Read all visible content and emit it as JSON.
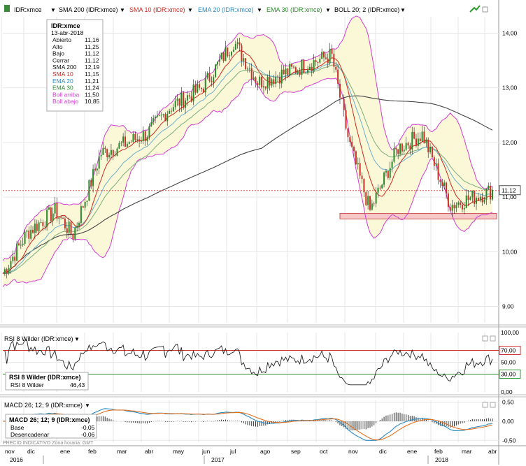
{
  "header": {
    "ticker": "IDR:xmce",
    "indicators": [
      {
        "label": "SMA 200 (IDR:xmce)",
        "color": "#000000"
      },
      {
        "label": "SMA 10 (IDR:xmce)",
        "color": "#d0281e"
      },
      {
        "label": "EMA 20 (IDR:xmce)",
        "color": "#2a8ac0"
      },
      {
        "label": "EMA 30 (IDR:xmce)",
        "color": "#2a8a2a"
      },
      {
        "label": "BOLL 20; 2 (IDR:xmce)",
        "color": "#000000"
      }
    ]
  },
  "info_box": {
    "title": "IDR:xmce",
    "date": "13-abr-2018",
    "rows": [
      {
        "label": "Abierto",
        "value": "11,16",
        "color": "#111111"
      },
      {
        "label": "Alto",
        "value": "11,25",
        "color": "#111111"
      },
      {
        "label": "Bajo",
        "value": "11,12",
        "color": "#111111"
      },
      {
        "label": "Cerrar",
        "value": "11,12",
        "color": "#111111"
      },
      {
        "label": "SMA 200",
        "value": "12,19",
        "color": "#111111"
      },
      {
        "label": "SMA 10",
        "value": "11,15",
        "color": "#d0281e"
      },
      {
        "label": "EMA 20",
        "value": "11,21",
        "color": "#2a8ac0"
      },
      {
        "label": "EMA 30",
        "value": "11,24",
        "color": "#2a8a2a"
      },
      {
        "label": "Boll arriba",
        "value": "11,50",
        "color": "#d23cd2"
      },
      {
        "label": "Boll abajo",
        "value": "10,85",
        "color": "#d23cd2"
      }
    ]
  },
  "price_panel": {
    "y_ticks": [
      "14,00",
      "13,00",
      "12,00",
      "11,00",
      "10,00",
      "9,00"
    ],
    "last_price_label": "11,12"
  },
  "rsi_panel": {
    "title": "RSI 8 Wilder (IDR:xmce)",
    "box_title": "RSI 8 Wilder (IDR:xmce)",
    "box_label": "RSI 8 Wilder",
    "box_value": "46,43",
    "y_ticks": [
      "100,00",
      "70,00",
      "50,00",
      "30,00",
      "0,00"
    ]
  },
  "macd_panel": {
    "title": "MACD 26; 12; 9 (IDR:xmce)",
    "box_title": "MACD 26; 12; 9 (IDR:xmce)",
    "rows": [
      {
        "label": "Base",
        "value": "-0,05",
        "color": "#2a8ac0"
      },
      {
        "label": "Desencadenar",
        "value": "-0,06",
        "color": "#e07020"
      }
    ],
    "y_ticks": [
      "0,50",
      "0,00",
      "-0,50"
    ],
    "footer": "PRECIO INDICATIVO  Zona horaria: GMT"
  },
  "x_axis": {
    "months": [
      "nov",
      "dic",
      "ene",
      "feb",
      "mar",
      "abr",
      "may",
      "jun",
      "jul",
      "ago",
      "sep",
      "oct",
      "nov",
      "dic",
      "ene",
      "feb",
      "mar",
      "abr"
    ],
    "years": [
      "2016",
      "2017",
      "2018"
    ]
  },
  "chart_data": {
    "type": "candlestick",
    "title": "IDR:xmce",
    "ylim": [
      8.7,
      14.3
    ],
    "price_key_points": [
      {
        "month": "nov-2016",
        "price": 9.6
      },
      {
        "month": "dic-2016",
        "price": 10.35
      },
      {
        "month": "ene-2017",
        "price": 10.75
      },
      {
        "month": "feb-2017",
        "price": 10.3
      },
      {
        "month": "feb-2017",
        "price": 11.8
      },
      {
        "month": "mar-2017",
        "price": 11.95
      },
      {
        "month": "abr-2017",
        "price": 12.15
      },
      {
        "month": "may-2017",
        "price": 12.65
      },
      {
        "month": "jun-2017",
        "price": 13.0
      },
      {
        "month": "jul-2017",
        "price": 13.85
      },
      {
        "month": "ago-2017",
        "price": 13.1
      },
      {
        "month": "sep-2017",
        "price": 13.3
      },
      {
        "month": "oct-2017",
        "price": 13.6
      },
      {
        "month": "nov-2017",
        "price": 12.0
      },
      {
        "month": "dic-2017",
        "price": 10.75
      },
      {
        "month": "ene-2018",
        "price": 11.9
      },
      {
        "month": "feb-2018",
        "price": 12.15
      },
      {
        "month": "mar-2018",
        "price": 10.85
      },
      {
        "month": "abr-2018",
        "price": 11.12
      }
    ],
    "support_zone": [
      10.6,
      10.7
    ],
    "rsi_levels": [
      70,
      30
    ],
    "rsi_ylim": [
      0,
      100
    ],
    "macd_ylim": [
      -0.55,
      0.55
    ]
  }
}
